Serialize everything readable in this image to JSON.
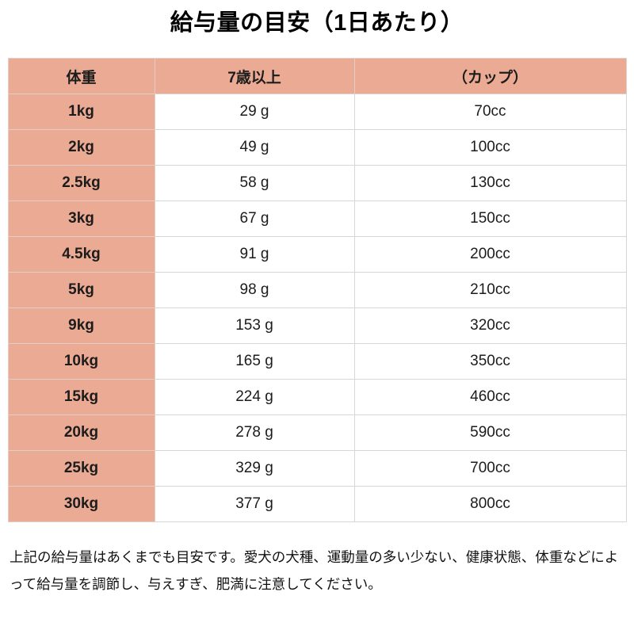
{
  "title": "給与量の目安（1日あたり）",
  "table": {
    "headers": [
      "体重",
      "7歳以上",
      "（カップ）"
    ],
    "rows": [
      [
        "1kg",
        "29 g",
        "70cc"
      ],
      [
        "2kg",
        "49 g",
        "100cc"
      ],
      [
        "2.5kg",
        "58 g",
        "130cc"
      ],
      [
        "3kg",
        "67 g",
        "150cc"
      ],
      [
        "4.5kg",
        "91 g",
        "200cc"
      ],
      [
        "5kg",
        "98 g",
        "210cc"
      ],
      [
        "9kg",
        "153 g",
        "320cc"
      ],
      [
        "10kg",
        "165 g",
        "350cc"
      ],
      [
        "15kg",
        "224 g",
        "460cc"
      ],
      [
        "20kg",
        "278 g",
        "590cc"
      ],
      [
        "25kg",
        "329 g",
        "700cc"
      ],
      [
        "30kg",
        "377 g",
        "800cc"
      ]
    ]
  },
  "note": "上記の給与量はあくまでも目安です。愛犬の犬種、運動量の多い少ない、健康状態、体重などによって給与量を調節し、与えすぎ、肥満に注意してください。",
  "colors": {
    "accent_bg": "#ebaa93",
    "border": "#d6d6d6",
    "text": "#1c1c1c"
  }
}
